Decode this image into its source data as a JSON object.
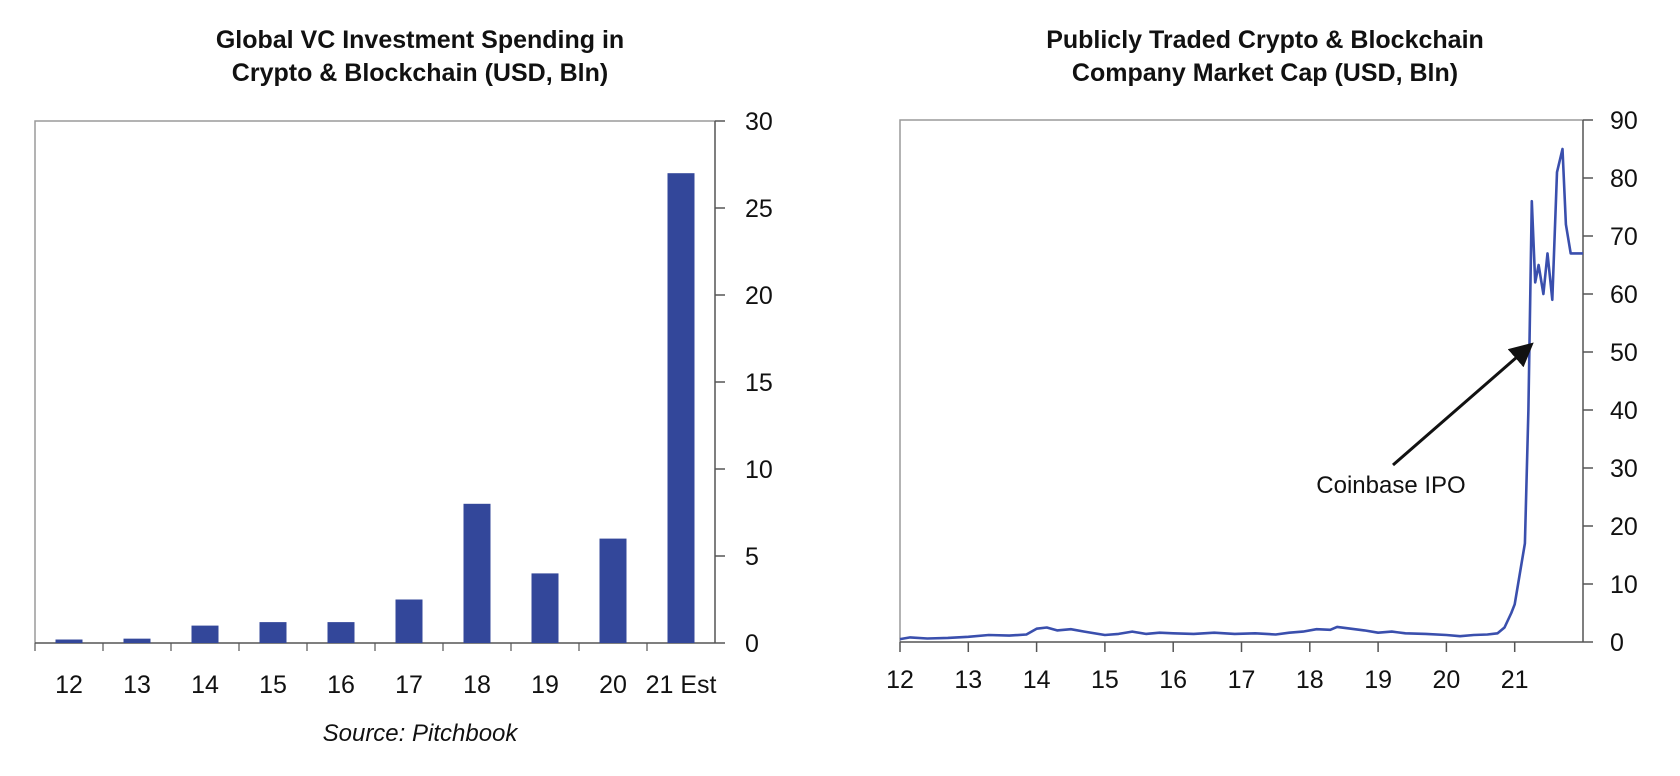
{
  "chart_data": [
    {
      "type": "bar",
      "title_lines": [
        "Global VC Investment Spending in",
        "Crypto & Blockchain (USD, Bln)"
      ],
      "categories": [
        "12",
        "13",
        "14",
        "15",
        "16",
        "17",
        "18",
        "19",
        "20",
        "21 Est"
      ],
      "values": [
        0.2,
        0.25,
        1.0,
        1.2,
        1.2,
        2.5,
        8.0,
        4.0,
        6.0,
        27.0
      ],
      "ylim": [
        0,
        30
      ],
      "yticks": [
        "0",
        "5",
        "10",
        "15",
        "20",
        "25",
        "30"
      ],
      "y_axis_side": "right",
      "source": "Source: Pitchbook",
      "bar_color": "#33479a"
    },
    {
      "type": "line",
      "title_lines": [
        "Publicly Traded Crypto & Blockchain",
        "Company Market Cap (USD, Bln)"
      ],
      "xticks": [
        "12",
        "13",
        "14",
        "15",
        "16",
        "17",
        "18",
        "19",
        "20",
        "21"
      ],
      "xlim": [
        2012,
        2022
      ],
      "ylim": [
        0,
        90
      ],
      "yticks": [
        "0",
        "10",
        "20",
        "30",
        "40",
        "50",
        "60",
        "70",
        "80",
        "90"
      ],
      "y_axis_side": "right",
      "line_color": "#3a4fad",
      "annotation": {
        "text": "Coinbase IPO",
        "x": 2021.3,
        "y": 52
      },
      "series": [
        {
          "x": [
            2012.0,
            2012.15,
            2012.4,
            2012.7,
            2013.0,
            2013.3,
            2013.6,
            2013.85,
            2014.0,
            2014.15,
            2014.3,
            2014.5,
            2014.7,
            2015.0,
            2015.2,
            2015.4,
            2015.6,
            2015.8,
            2016.0,
            2016.3,
            2016.6,
            2016.9,
            2017.2,
            2017.5,
            2017.7,
            2017.9,
            2018.1,
            2018.3,
            2018.4,
            2018.6,
            2018.8,
            2019.0,
            2019.2,
            2019.4,
            2019.7,
            2020.0,
            2020.2,
            2020.4,
            2020.6,
            2020.75,
            2020.85,
            2020.95,
            2021.0,
            2021.05,
            2021.15,
            2021.2,
            2021.25,
            2021.3,
            2021.35,
            2021.42,
            2021.48,
            2021.55,
            2021.62,
            2021.7,
            2021.75,
            2021.82,
            2021.88,
            2021.95,
            2022.0
          ],
          "y": [
            0.5,
            0.8,
            0.6,
            0.7,
            0.9,
            1.2,
            1.1,
            1.3,
            2.3,
            2.5,
            2.0,
            2.2,
            1.8,
            1.2,
            1.4,
            1.8,
            1.4,
            1.6,
            1.5,
            1.4,
            1.6,
            1.4,
            1.5,
            1.3,
            1.6,
            1.8,
            2.2,
            2.1,
            2.6,
            2.3,
            2.0,
            1.6,
            1.8,
            1.5,
            1.4,
            1.2,
            1.0,
            1.2,
            1.3,
            1.5,
            2.5,
            5.0,
            6.5,
            10.0,
            17.0,
            40.0,
            76.0,
            62.0,
            65.0,
            60.0,
            67.0,
            59.0,
            81.0,
            85.0,
            72.0,
            67.0,
            67.0,
            67.0,
            67.0
          ]
        }
      ]
    }
  ]
}
